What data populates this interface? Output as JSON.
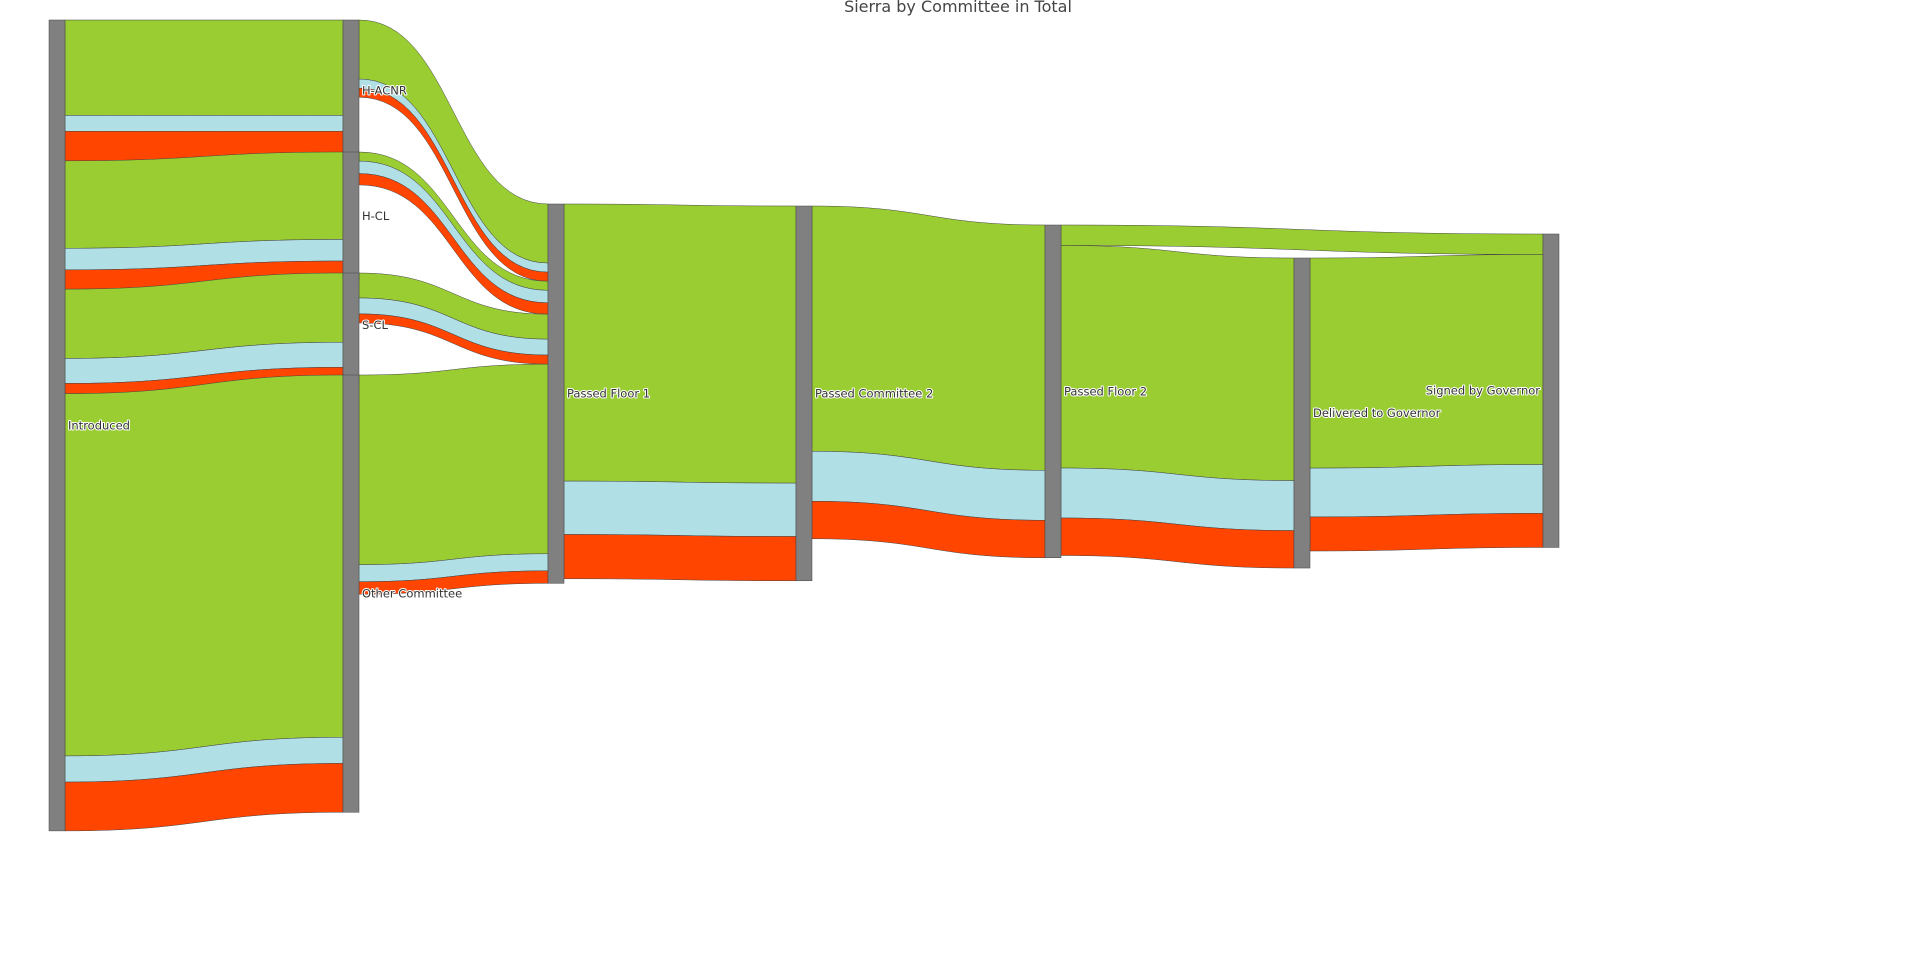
{
  "title": "Sierra by Committee in Total",
  "colors": {
    "node": "#808080",
    "status_1": "#9acd32",
    "status_2": "#b0e0e6",
    "status_3": "#ff4500"
  },
  "chart_data": {
    "type": "sankey",
    "title": "Sierra by Committee in Total",
    "nodes": [
      {
        "id": "introduced",
        "label": "Introduced"
      },
      {
        "id": "h-acnr",
        "label": "H-ACNR"
      },
      {
        "id": "h-cl",
        "label": "H-CL"
      },
      {
        "id": "s-cl",
        "label": "S-CL"
      },
      {
        "id": "other",
        "label": "Other Committee"
      },
      {
        "id": "floor1",
        "label": "Passed Floor 1"
      },
      {
        "id": "committee2",
        "label": "Passed Committee 2"
      },
      {
        "id": "floor2",
        "label": "Passed Floor 2"
      },
      {
        "id": "delivered",
        "label": "Delivered to Governor"
      },
      {
        "id": "signed",
        "label": "Signed by Governor"
      }
    ],
    "links": [
      {
        "source": "introduced",
        "target": "h-acnr",
        "value": 84,
        "group": 1
      },
      {
        "source": "introduced",
        "target": "h-acnr",
        "value": 14,
        "group": 2
      },
      {
        "source": "introduced",
        "target": "h-acnr",
        "value": 26,
        "group": 3
      },
      {
        "source": "introduced",
        "target": "h-cl",
        "value": 77,
        "group": 1
      },
      {
        "source": "introduced",
        "target": "h-cl",
        "value": 19,
        "group": 2
      },
      {
        "source": "introduced",
        "target": "h-cl",
        "value": 17,
        "group": 3
      },
      {
        "source": "introduced",
        "target": "s-cl",
        "value": 61,
        "group": 1
      },
      {
        "source": "introduced",
        "target": "s-cl",
        "value": 22,
        "group": 2
      },
      {
        "source": "introduced",
        "target": "s-cl",
        "value": 9,
        "group": 3
      },
      {
        "source": "introduced",
        "target": "other",
        "value": 319,
        "group": 1
      },
      {
        "source": "introduced",
        "target": "other",
        "value": 23,
        "group": 2
      },
      {
        "source": "introduced",
        "target": "other",
        "value": 43,
        "group": 3
      },
      {
        "source": "h-acnr",
        "target": "floor1",
        "value": 52,
        "group": 1
      },
      {
        "source": "h-acnr",
        "target": "floor1",
        "value": 8,
        "group": 2
      },
      {
        "source": "h-acnr",
        "target": "floor1",
        "value": 8,
        "group": 3
      },
      {
        "source": "h-cl",
        "target": "floor1",
        "value": 8,
        "group": 1
      },
      {
        "source": "h-cl",
        "target": "floor1",
        "value": 11,
        "group": 2
      },
      {
        "source": "h-cl",
        "target": "floor1",
        "value": 10,
        "group": 3
      },
      {
        "source": "s-cl",
        "target": "floor1",
        "value": 22,
        "group": 1
      },
      {
        "source": "s-cl",
        "target": "floor1",
        "value": 14,
        "group": 2
      },
      {
        "source": "s-cl",
        "target": "floor1",
        "value": 8,
        "group": 3
      },
      {
        "source": "other",
        "target": "floor1",
        "value": 167,
        "group": 1
      },
      {
        "source": "other",
        "target": "floor1",
        "value": 15,
        "group": 2
      },
      {
        "source": "other",
        "target": "floor1",
        "value": 11,
        "group": 3
      },
      {
        "source": "floor1",
        "target": "committee2",
        "value": 244,
        "group": 1
      },
      {
        "source": "floor1",
        "target": "committee2",
        "value": 47,
        "group": 2
      },
      {
        "source": "floor1",
        "target": "committee2",
        "value": 39,
        "group": 3
      },
      {
        "source": "committee2",
        "target": "floor2",
        "value": 216,
        "group": 1
      },
      {
        "source": "committee2",
        "target": "floor2",
        "value": 44,
        "group": 2
      },
      {
        "source": "committee2",
        "target": "floor2",
        "value": 33,
        "group": 3
      },
      {
        "source": "floor2",
        "target": "signed",
        "value": 18,
        "group": 1
      },
      {
        "source": "floor2",
        "target": "delivered",
        "value": 196,
        "group": 1
      },
      {
        "source": "floor2",
        "target": "delivered",
        "value": 44,
        "group": 2
      },
      {
        "source": "floor2",
        "target": "delivered",
        "value": 33,
        "group": 3
      },
      {
        "source": "delivered",
        "target": "signed",
        "value": 185,
        "group": 1
      },
      {
        "source": "delivered",
        "target": "signed",
        "value": 43,
        "group": 2
      },
      {
        "source": "delivered",
        "target": "signed",
        "value": 30,
        "group": 3
      }
    ]
  }
}
